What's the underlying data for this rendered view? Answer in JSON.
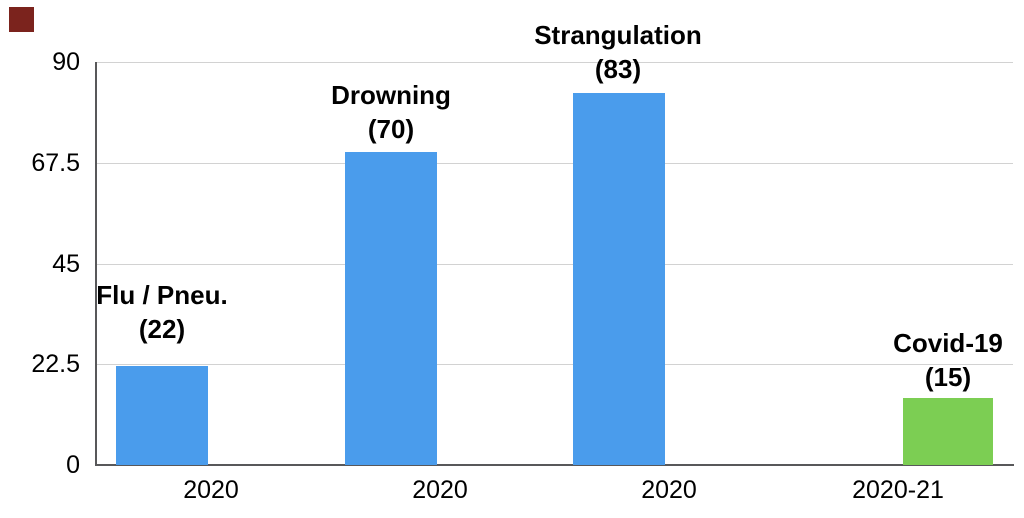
{
  "chart_data": {
    "type": "bar",
    "title": "",
    "xlabel": "",
    "ylabel": "",
    "ylim": [
      0,
      90
    ],
    "y_ticks": [
      "90",
      "67.5",
      "45",
      "22.5",
      "0"
    ],
    "grid": true,
    "legend": "none",
    "categories": [
      "2020",
      "2020",
      "2020",
      "2020-21"
    ],
    "bars": [
      {
        "name": "Flu / Pneu.",
        "count_label": "(22)",
        "value": 22,
        "category": "2020",
        "color": "#4A9CEC"
      },
      {
        "name": "Drowning",
        "count_label": "(70)",
        "value": 70,
        "category": "2020",
        "color": "#4A9CEC"
      },
      {
        "name": "Strangulation",
        "count_label": "(83)",
        "value": 83,
        "category": "2020",
        "color": "#4A9CEC"
      },
      {
        "name": "Covid-19",
        "count_label": "(15)",
        "value": 15,
        "category": "2020-21",
        "color": "#7CCE53"
      }
    ]
  },
  "colors": {
    "bar_blue": "#4A9CEC",
    "bar_green": "#7CCE53",
    "axis_line": "#58585A",
    "gridline": "#D2D2D2",
    "text": "#000000",
    "background": "#FFFFFF",
    "corner_marker": "#7B231D"
  }
}
